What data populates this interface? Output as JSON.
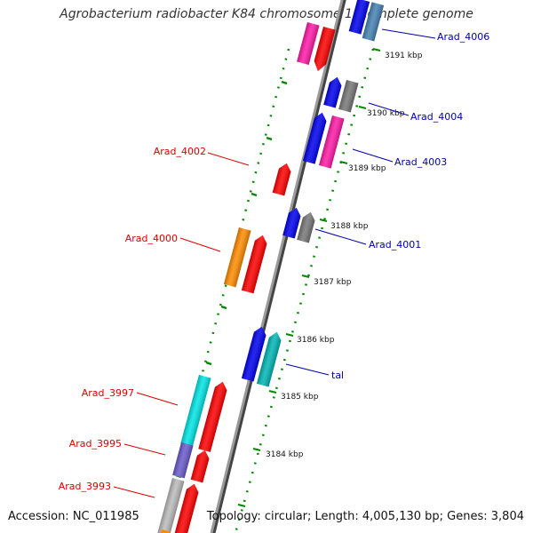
{
  "title": "Agrobacterium radiobacter K84 chromosome 1, complete genome",
  "accession_text": "Accession: NC_011985",
  "topology_text": "Topology: circular; Length: 4,005,130 bp; Genes: 3,804",
  "ticks": [
    "3191 kbp",
    "3190 kbp",
    "3189 kbp",
    "3188 kbp",
    "3187 kbp",
    "3186 kbp",
    "3185 kbp",
    "3184 kbp"
  ],
  "genes_reverse": [
    "Arad_4002",
    "Arad_4000",
    "Arad_3997",
    "Arad_3995",
    "Arad_3993"
  ],
  "genes_forward": [
    "Arad_4006",
    "Arad_4004",
    "Arad_4003",
    "Arad_4001",
    "tal"
  ],
  "colors": {
    "red": "#ff0000",
    "blue": "#0000ee",
    "grey": "#777777",
    "pink": "#ff1aa8",
    "orange": "#ff8c00",
    "cyan": "#00e5e5",
    "teal": "#00b5b5",
    "purple": "#6a5acd",
    "lightgrey": "#bbbbbb",
    "steelblue": "#4682b4",
    "backbone": "#888888",
    "ring": "#008800"
  }
}
